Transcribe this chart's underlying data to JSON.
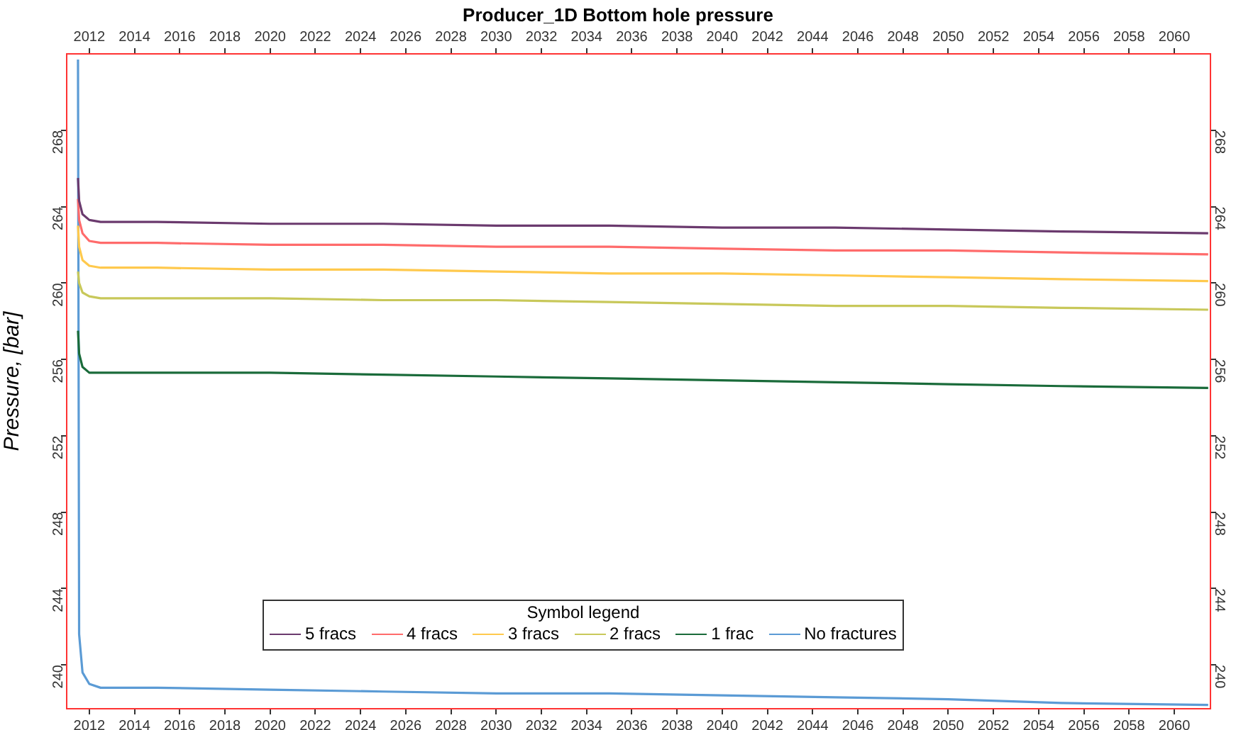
{
  "chart_data": {
    "type": "line",
    "title": "Producer_1D Bottom hole pressure",
    "ylabel": "Pressure, [bar]",
    "legend_title": "Symbol legend",
    "legend": "bottom",
    "x": [
      2011.5,
      2011.55,
      2011.7,
      2012,
      2012.5,
      2015,
      2020,
      2025,
      2030,
      2035,
      2040,
      2045,
      2050,
      2055,
      2061.5
    ],
    "series": [
      {
        "name": "5 fracs",
        "color": "#6b3a6e",
        "values": [
          265.5,
          264.3,
          263.6,
          263.3,
          263.2,
          263.2,
          263.1,
          263.1,
          263.0,
          263.0,
          262.9,
          262.9,
          262.8,
          262.7,
          262.6
        ]
      },
      {
        "name": "4 fracs",
        "color": "#ff6b6b",
        "values": [
          264.4,
          263.3,
          262.6,
          262.2,
          262.1,
          262.1,
          262.0,
          262.0,
          261.9,
          261.9,
          261.8,
          261.7,
          261.7,
          261.6,
          261.5
        ]
      },
      {
        "name": "3 fracs",
        "color": "#ffc94d",
        "values": [
          263.0,
          261.9,
          261.2,
          260.9,
          260.8,
          260.8,
          260.7,
          260.7,
          260.6,
          260.5,
          260.5,
          260.4,
          260.3,
          260.2,
          260.1
        ]
      },
      {
        "name": "2 fracs",
        "color": "#c8c85a",
        "values": [
          260.6,
          260.0,
          259.5,
          259.3,
          259.2,
          259.2,
          259.2,
          259.1,
          259.1,
          259.0,
          258.9,
          258.8,
          258.8,
          258.7,
          258.6
        ]
      },
      {
        "name": "1 frac",
        "color": "#1a6b3a",
        "values": [
          257.5,
          256.3,
          255.6,
          255.3,
          255.3,
          255.3,
          255.3,
          255.2,
          255.1,
          255.0,
          254.9,
          254.8,
          254.7,
          254.6,
          254.5
        ]
      },
      {
        "name": "No fractures",
        "color": "#5b9bd5",
        "values": [
          271.7,
          241.6,
          239.6,
          239.0,
          238.8,
          238.8,
          238.7,
          238.6,
          238.5,
          238.5,
          238.4,
          238.3,
          238.2,
          238.0,
          237.9
        ]
      }
    ],
    "xlim": [
      2011.0,
      2061.6
    ],
    "xticks": [
      2012,
      2014,
      2016,
      2018,
      2020,
      2022,
      2024,
      2026,
      2028,
      2030,
      2032,
      2034,
      2036,
      2038,
      2040,
      2042,
      2044,
      2046,
      2048,
      2050,
      2052,
      2054,
      2056,
      2058,
      2060
    ],
    "x2lim": [
      2011.0,
      2061.6
    ],
    "x2ticks": [
      2012,
      2014,
      2016,
      2018,
      2020,
      2022,
      2024,
      2026,
      2028,
      2030,
      2032,
      2034,
      2036,
      2038,
      2040,
      2042,
      2044,
      2046,
      2048,
      2050,
      2052,
      2054,
      2056,
      2058,
      2060
    ],
    "ylim": [
      237.7,
      272
    ],
    "yticks": [
      240,
      244,
      248,
      252,
      256,
      260,
      264,
      268
    ],
    "y2lim": [
      237.7,
      272
    ],
    "y2ticks": [
      240,
      244,
      248,
      252,
      256,
      260,
      264,
      268
    ]
  }
}
